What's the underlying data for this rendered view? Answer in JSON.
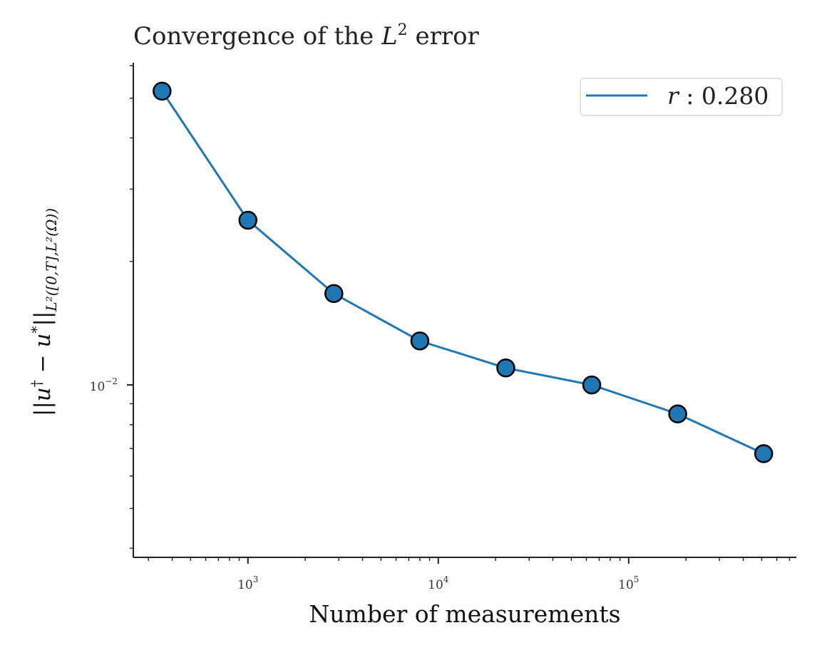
{
  "chart_data": {
    "type": "line",
    "title": "Convergence of the L² error",
    "title_parts": {
      "pre": "Convergence of the ",
      "var": "L",
      "sup": "2",
      "post": " error"
    },
    "xlabel": "Number of measurements",
    "ylabel_parts": [
      "||u",
      "†",
      " − u",
      "*",
      "||",
      "L²([0,T],L²(Ω))"
    ],
    "x_scale": "log",
    "y_scale": "log",
    "xlim": [
      250,
      760000
    ],
    "ylim": [
      0.0038,
      0.061
    ],
    "x_ticks": [
      {
        "value": 1000,
        "base": "10",
        "exp": "3"
      },
      {
        "value": 10000,
        "base": "10",
        "exp": "4"
      },
      {
        "value": 100000,
        "base": "10",
        "exp": "5"
      }
    ],
    "y_ticks": [
      {
        "value": 0.01,
        "base": "10",
        "exp": "−2"
      }
    ],
    "grid": false,
    "legend": {
      "position": "top-right"
    },
    "series": [
      {
        "name": "r : 0.280",
        "name_parts": {
          "var": "r",
          "rest": " : 0.280"
        },
        "color": "#1f77b4",
        "marker_edge": "#000000",
        "x": [
          354,
          1000,
          2828,
          8000,
          22627,
          64000,
          181019,
          512000
        ],
        "y": [
          0.052,
          0.0252,
          0.0167,
          0.0128,
          0.011,
          0.01,
          0.0085,
          0.0068
        ]
      }
    ]
  }
}
